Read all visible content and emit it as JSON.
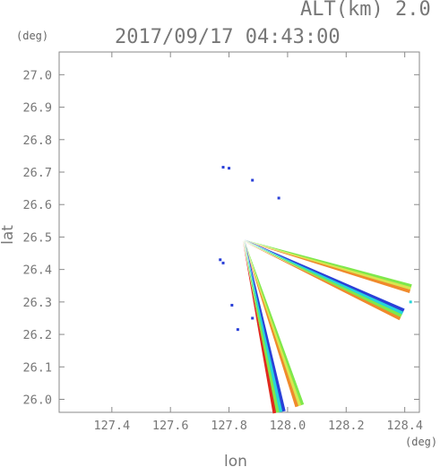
{
  "chart_data": {
    "type": "scatter",
    "altitude_label": "ALT(km) 2.0",
    "title": "2017/09/17 04:43:00",
    "xlabel": "lon",
    "ylabel": "lat",
    "x_unit": "(deg)",
    "y_unit": "(deg)",
    "xlim": [
      127.22,
      128.45
    ],
    "ylim": [
      25.96,
      27.07
    ],
    "xticks": [
      "127.4",
      "127.6",
      "127.8",
      "128.0",
      "128.2",
      "128.4"
    ],
    "yticks": [
      "26.0",
      "26.1",
      "26.2",
      "26.3",
      "26.4",
      "26.5",
      "26.6",
      "26.7",
      "26.8",
      "26.9",
      "27.0"
    ],
    "colors": {
      "blue": "#2a40d8",
      "cyan": "#27d5d8",
      "green": "#7ee84c",
      "yellow": "#d8e650",
      "orange": "#f08a2c",
      "red": "#e02a1e"
    },
    "radar_origin": {
      "lon": 127.85,
      "lat": 26.49
    },
    "beams": [
      {
        "name": "beam-east-upper",
        "end": {
          "lon": 128.42,
          "lat": 26.34
        },
        "width": 3.2,
        "layers": [
          "green",
          "yellow",
          "orange"
        ]
      },
      {
        "name": "beam-east-lower",
        "end": {
          "lon": 128.39,
          "lat": 26.26
        },
        "width": 3.5,
        "layers": [
          "blue",
          "cyan",
          "green",
          "orange"
        ]
      },
      {
        "name": "beam-south-east",
        "end": {
          "lon": 128.04,
          "lat": 25.98
        },
        "width": 3.2,
        "layers": [
          "green",
          "yellow",
          "orange"
        ]
      },
      {
        "name": "beam-south",
        "end": {
          "lon": 127.97,
          "lat": 25.96
        },
        "width": 3.6,
        "layers": [
          "blue",
          "cyan",
          "green",
          "red"
        ]
      }
    ],
    "echo_spots": [
      {
        "lon": 127.78,
        "lat": 26.715,
        "color": "blue"
      },
      {
        "lon": 127.8,
        "lat": 26.712,
        "color": "blue"
      },
      {
        "lon": 127.88,
        "lat": 26.675,
        "color": "blue"
      },
      {
        "lon": 127.97,
        "lat": 26.62,
        "color": "blue"
      },
      {
        "lon": 127.77,
        "lat": 26.43,
        "color": "blue"
      },
      {
        "lon": 127.78,
        "lat": 26.42,
        "color": "blue"
      },
      {
        "lon": 127.81,
        "lat": 26.29,
        "color": "blue"
      },
      {
        "lon": 127.83,
        "lat": 26.215,
        "color": "blue"
      },
      {
        "lon": 127.88,
        "lat": 26.25,
        "color": "blue"
      },
      {
        "lon": 128.42,
        "lat": 26.3,
        "color": "cyan"
      }
    ]
  }
}
